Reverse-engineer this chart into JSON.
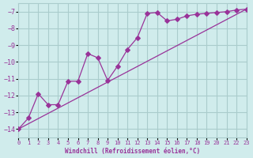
{
  "background_color": "#d0ecec",
  "grid_color": "#aacccc",
  "line_color": "#993399",
  "marker_color": "#993399",
  "xlabel": "Windchill (Refroidissement éolien,°C)",
  "xlim": [
    0,
    23
  ],
  "ylim": [
    -14.5,
    -6.5
  ],
  "yticks": [
    -14,
    -13,
    -12,
    -11,
    -10,
    -9,
    -8,
    -7
  ],
  "xticks": [
    0,
    1,
    2,
    3,
    4,
    5,
    6,
    7,
    8,
    9,
    10,
    11,
    12,
    13,
    14,
    15,
    16,
    17,
    18,
    19,
    20,
    21,
    22,
    23
  ],
  "line1_x": [
    0,
    1,
    2,
    3,
    4,
    5,
    6,
    7,
    8,
    9,
    10,
    11,
    12,
    13,
    14,
    15,
    16,
    17,
    18,
    19,
    20,
    21,
    22,
    23
  ],
  "line1_y": [
    -14,
    -13.35,
    -11.9,
    -12.55,
    -12.55,
    -11.15,
    -11.15,
    -9.5,
    -9.75,
    -11.1,
    -10.25,
    -9.25,
    -8.55,
    -7.1,
    -7.05,
    -7.55,
    -7.45,
    -7.25,
    -7.15,
    -7.1,
    -7.05,
    -7.0,
    -6.9,
    -6.85
  ],
  "line2_x": [
    0,
    23
  ],
  "line2_y": [
    -14,
    -6.85
  ],
  "scatter_x": [
    0,
    1,
    2,
    3,
    4,
    5,
    6,
    7,
    8,
    9,
    10,
    11,
    12,
    13,
    14,
    15,
    16,
    17,
    18,
    19,
    20,
    21,
    22,
    23
  ],
  "scatter_y": [
    -14,
    -13.35,
    -11.9,
    -12.55,
    -12.55,
    -11.15,
    -11.15,
    -9.5,
    -9.75,
    -11.1,
    -10.25,
    -9.25,
    -8.55,
    -7.1,
    -7.05,
    -7.55,
    -7.45,
    -7.25,
    -7.15,
    -7.1,
    -7.05,
    -7.0,
    -6.9,
    -6.85
  ]
}
